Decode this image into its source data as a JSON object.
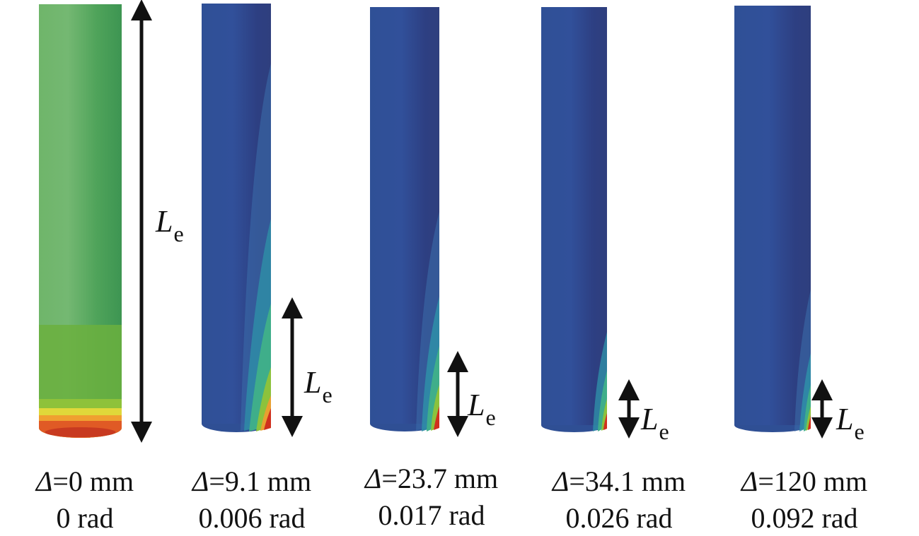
{
  "figure": {
    "length_symbol": "L",
    "length_subscript": "e",
    "delta_symbol": "Δ",
    "panels": [
      {
        "displacement": "=0 mm",
        "rotation": "0 rad",
        "contour": "green-uniform",
        "le_fraction": 1.0
      },
      {
        "displacement": "=9.1 mm",
        "rotation": "0.006 rad",
        "contour": "blue-localized",
        "le_fraction": 0.3
      },
      {
        "displacement": "=23.7 mm",
        "rotation": "0.017 rad",
        "contour": "blue-localized",
        "le_fraction": 0.17
      },
      {
        "displacement": "=34.1 mm",
        "rotation": "0.026 rad",
        "contour": "blue-localized",
        "le_fraction": 0.1
      },
      {
        "displacement": "=120 mm",
        "rotation": "0.092 rad",
        "contour": "blue-localized",
        "le_fraction": 0.1
      }
    ]
  },
  "colors": {
    "green": "#5aa84e",
    "blue": "#2f4f94",
    "red": "#d23a20",
    "arrow": "#111111"
  }
}
